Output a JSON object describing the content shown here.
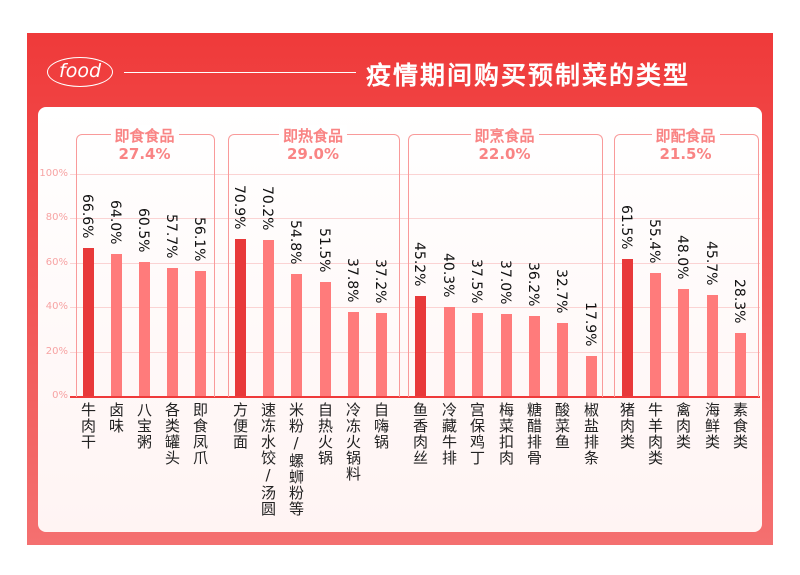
{
  "header": {
    "logo_text": "food",
    "title": "疫情期间购买预制菜的类型"
  },
  "colors": {
    "highlight": "#e8393a",
    "bar": "#ff7b7b",
    "group_text": "#f98484"
  },
  "chart_data": {
    "type": "bar",
    "ylim": [
      0,
      100
    ],
    "yticks": [
      "0%",
      "20%",
      "40%",
      "60%",
      "80%",
      "100%"
    ],
    "grid": true,
    "groups": [
      {
        "name": "即食食品",
        "share": "27.4%",
        "categories": [
          "牛肉干",
          "卤味",
          "八宝粥",
          "各类罐头",
          "即食凤爪"
        ],
        "values": [
          66.6,
          64.0,
          60.5,
          57.7,
          56.1
        ],
        "labels": [
          "66.6%",
          "64.0%",
          "60.5%",
          "57.7%",
          "56.1%"
        ]
      },
      {
        "name": "即热食品",
        "share": "29.0%",
        "categories": [
          "方便面",
          "速冻水饺/汤圆",
          "米粉/螺蛳粉等",
          "自热火锅",
          "冷冻火锅料",
          "自嗨锅"
        ],
        "values": [
          70.9,
          70.2,
          54.8,
          51.5,
          37.8,
          37.2
        ],
        "labels": [
          "70.9%",
          "70.2%",
          "54.8%",
          "51.5%",
          "37.8%",
          "37.2%"
        ]
      },
      {
        "name": "即烹食品",
        "share": "22.0%",
        "categories": [
          "鱼香肉丝",
          "冷藏牛排",
          "宫保鸡丁",
          "梅菜扣肉",
          "糖醋排骨",
          "酸菜鱼",
          "椒盐排条"
        ],
        "values": [
          45.2,
          40.3,
          37.5,
          37.0,
          36.2,
          32.7,
          17.9
        ],
        "labels": [
          "45.2%",
          "40.3%",
          "37.5%",
          "37.0%",
          "36.2%",
          "32.7%",
          "17.9%"
        ]
      },
      {
        "name": "即配食品",
        "share": "21.5%",
        "categories": [
          "猪肉类",
          "牛羊肉类",
          "禽肉类",
          "海鲜类",
          "素食类"
        ],
        "values": [
          61.5,
          55.4,
          48.0,
          45.7,
          28.3
        ],
        "labels": [
          "61.5%",
          "55.4%",
          "48.0%",
          "45.7%",
          "28.3%"
        ]
      }
    ]
  }
}
